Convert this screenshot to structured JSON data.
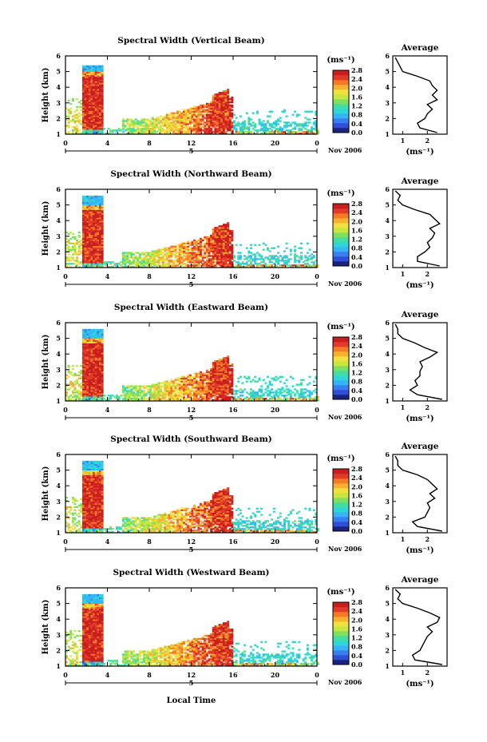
{
  "chart_data": [
    {
      "type": "heatmap",
      "title": "Spectral Width (Vertical Beam)"
    },
    {
      "type": "heatmap",
      "title": "Spectral Width (Northward Beam)"
    },
    {
      "type": "heatmap",
      "title": "Spectral Width (Eastward Beam)"
    },
    {
      "type": "heatmap",
      "title": "Spectral Width (Southward Beam)"
    },
    {
      "type": "heatmap",
      "title": "Spectral Width (Westward Beam)"
    }
  ],
  "common": {
    "ylabel": "Height (km)",
    "xticks": [
      "0",
      "4",
      "8",
      "12",
      "16",
      "20",
      "0"
    ],
    "xtick_values": [
      0,
      4,
      8,
      12,
      16,
      20,
      24
    ],
    "xlim": [
      0,
      24
    ],
    "ylim": [
      1,
      6
    ],
    "yticks": [
      "1",
      "2",
      "3",
      "4",
      "5",
      "6"
    ],
    "date_day": "5",
    "date_month": "Nov 2006",
    "xlabel": "Local Time",
    "colorbar_unit": "(ms⁻¹)",
    "colorbar_ticks": [
      "0.0",
      "0.4",
      "0.8",
      "1.2",
      "1.6",
      "2.0",
      "2.4",
      "2.8"
    ],
    "colorbar_range": [
      0,
      2.8
    ],
    "avg_title": "Average",
    "avg_xlabel": "(ms⁻¹)",
    "avg_xticks": [
      "1",
      "2"
    ],
    "avg_xtick_values": [
      1,
      2
    ],
    "avg_xlim": [
      0.6,
      2.8
    ]
  },
  "avg_profiles": [
    {
      "height": [
        1.1,
        1.4,
        1.7,
        2.0,
        2.3,
        2.6,
        2.9,
        3.2,
        3.5,
        3.8,
        4.1,
        4.4,
        4.7,
        5.0,
        5.3,
        5.6,
        5.9
      ],
      "width": [
        2.4,
        1.7,
        1.6,
        1.9,
        2.0,
        2.2,
        2.0,
        2.4,
        2.2,
        2.4,
        2.2,
        2.1,
        1.6,
        1.0,
        0.9,
        0.8,
        0.7
      ]
    },
    {
      "height": [
        1.1,
        1.4,
        1.7,
        2.0,
        2.3,
        2.6,
        2.9,
        3.2,
        3.5,
        3.8,
        4.1,
        4.4,
        4.7,
        5.0,
        5.3,
        5.6,
        5.9
      ],
      "width": [
        2.5,
        1.6,
        1.6,
        1.9,
        2.1,
        2.0,
        2.2,
        2.3,
        2.1,
        2.5,
        2.3,
        2.1,
        1.5,
        1.0,
        0.8,
        0.9,
        0.7
      ]
    },
    {
      "height": [
        1.1,
        1.4,
        1.7,
        2.0,
        2.3,
        2.6,
        2.9,
        3.2,
        3.5,
        3.8,
        4.1,
        4.4,
        4.7,
        5.0,
        5.3,
        5.6,
        5.9
      ],
      "width": [
        2.6,
        1.6,
        1.3,
        1.6,
        1.5,
        1.7,
        1.7,
        1.8,
        1.7,
        2.1,
        2.4,
        1.9,
        1.5,
        1.0,
        0.8,
        0.8,
        0.7
      ]
    },
    {
      "height": [
        1.1,
        1.4,
        1.7,
        2.0,
        2.3,
        2.6,
        2.9,
        3.2,
        3.5,
        3.8,
        4.1,
        4.4,
        4.7,
        5.0,
        5.3,
        5.6,
        5.9
      ],
      "width": [
        2.6,
        1.6,
        1.4,
        1.9,
        2.0,
        2.1,
        2.0,
        2.3,
        2.1,
        2.4,
        2.2,
        2.0,
        1.6,
        1.0,
        0.8,
        0.8,
        0.7
      ]
    },
    {
      "height": [
        1.1,
        1.4,
        1.7,
        2.0,
        2.3,
        2.6,
        2.9,
        3.2,
        3.5,
        3.8,
        4.1,
        4.4,
        4.7,
        5.0,
        5.3,
        5.6,
        5.9
      ],
      "width": [
        2.6,
        1.5,
        1.4,
        1.7,
        1.8,
        1.9,
        2.0,
        2.2,
        2.0,
        2.4,
        2.5,
        2.1,
        1.6,
        1.0,
        0.8,
        0.9,
        0.7
      ]
    }
  ],
  "colors": {
    "scale": [
      "#1a237e",
      "#2f4fd8",
      "#3a7ff0",
      "#36b4f5",
      "#2fd6d6",
      "#46dca0",
      "#7fe060",
      "#c8e640",
      "#f0e040",
      "#f8b030",
      "#f47a28",
      "#e23a2a",
      "#c81e1e"
    ]
  }
}
